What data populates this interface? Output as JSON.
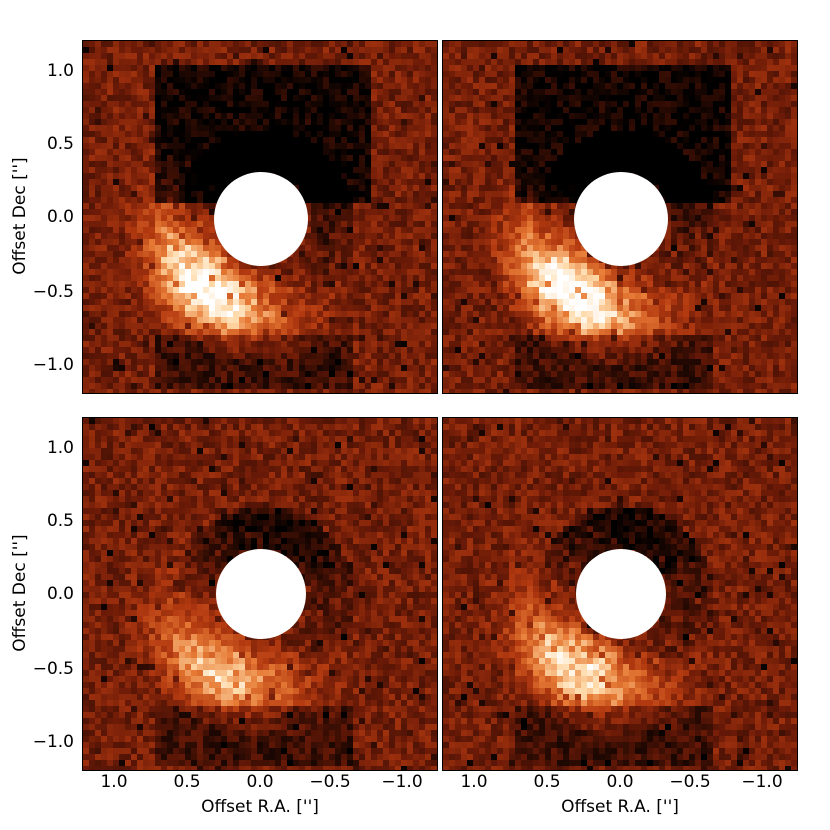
{
  "figure": {
    "y_axis_label": "Offset Dec ['']",
    "x_axis_label": "Offset R.A. ['']",
    "y_ticks": [
      "1.0",
      "0.5",
      "0.0",
      "−0.5",
      "−1.0"
    ],
    "x_ticks": [
      "1.0",
      "0.5",
      "0.0",
      "−0.5",
      "−1.0"
    ],
    "colormap": [
      "#000000",
      "#6b1a07",
      "#b43a10",
      "#e67a35",
      "#ffd9a8",
      "#ffffff"
    ],
    "mask_color": "#ffffff"
  }
}
